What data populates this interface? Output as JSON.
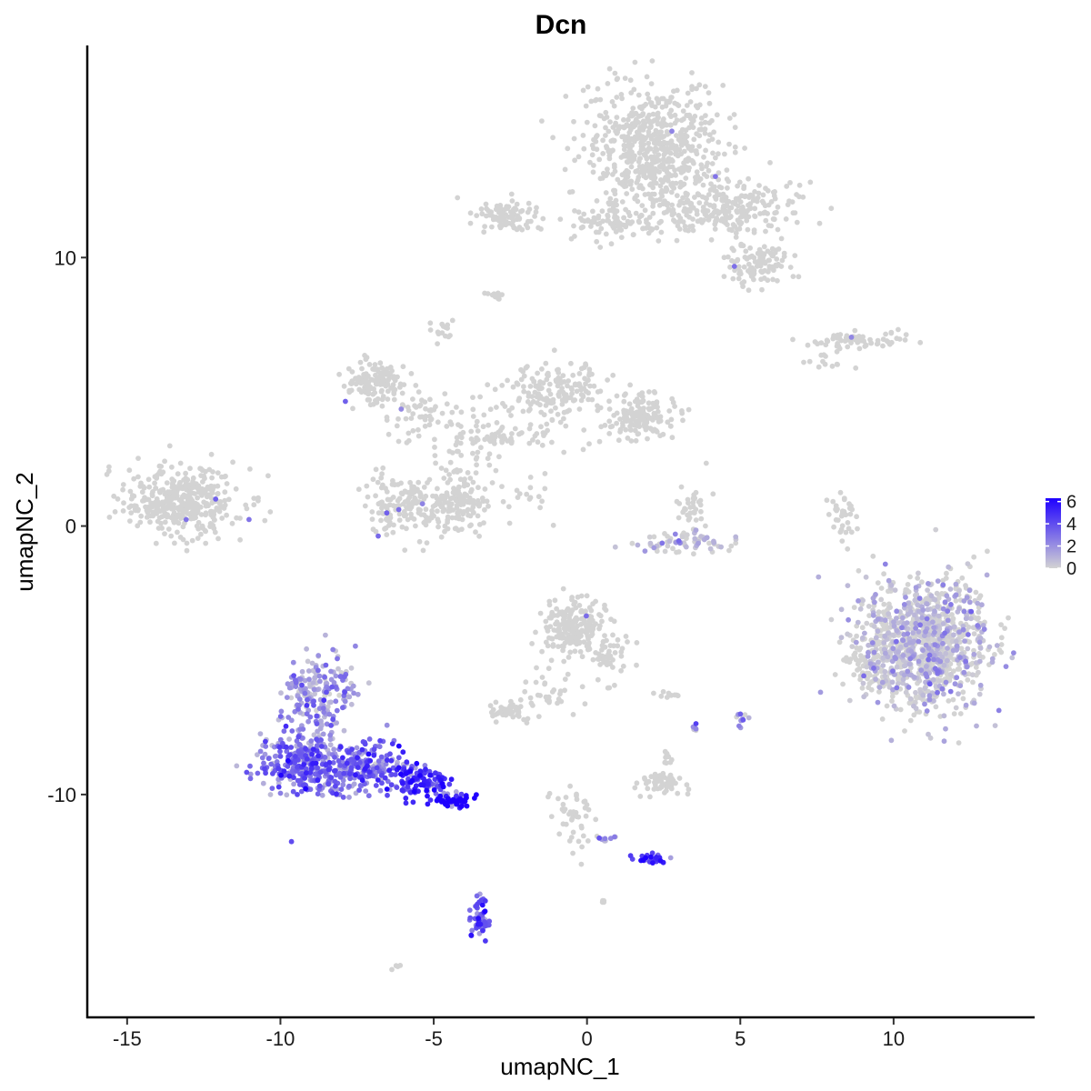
{
  "chart_data": {
    "type": "scatter",
    "title": "Dcn",
    "xlabel": "umapNC_1",
    "ylabel": "umapNC_2",
    "xlim": [
      -16.3,
      14.6
    ],
    "ylim": [
      -18.3,
      17.9
    ],
    "x_ticks": [
      -15,
      -10,
      -5,
      0,
      5,
      10
    ],
    "x_tick_labels": [
      "-15",
      "-10",
      "-5",
      "0",
      "5",
      "10"
    ],
    "y_ticks": [
      -10,
      0,
      10
    ],
    "y_tick_labels": [
      "-10",
      "0",
      "10"
    ],
    "grid": false,
    "legend": {
      "position": "right",
      "type": "colorbar",
      "ticks": [
        0,
        2,
        4,
        6
      ],
      "tick_labels": [
        "0",
        "2",
        "4",
        "6"
      ],
      "range": [
        0,
        6.3
      ]
    },
    "colors": {
      "low": "#d3d3d3",
      "high": "#1e00ff"
    },
    "clusters": [
      {
        "cx": -13.2,
        "cy": 0.9,
        "sx": 1.1,
        "sy": 0.75,
        "n": 380,
        "expr": 0
      },
      {
        "cx": 2.2,
        "cy": 14.0,
        "sx": 1.3,
        "sy": 1.4,
        "n": 650,
        "expr": 0
      },
      {
        "cx": 4.5,
        "cy": 11.8,
        "sx": 1.3,
        "sy": 0.6,
        "n": 260,
        "expr": 0
      },
      {
        "cx": 5.5,
        "cy": 9.8,
        "sx": 0.6,
        "sy": 0.45,
        "n": 110,
        "expr": 0
      },
      {
        "cx": -2.5,
        "cy": 11.6,
        "sx": 0.6,
        "sy": 0.35,
        "n": 90,
        "expr": 0
      },
      {
        "cx": 0.9,
        "cy": 11.3,
        "sx": 0.9,
        "sy": 0.4,
        "n": 80,
        "expr": 0
      },
      {
        "cx": -3.0,
        "cy": 8.6,
        "sx": 0.15,
        "sy": 0.1,
        "n": 12,
        "expr": 0
      },
      {
        "cx": -4.7,
        "cy": 7.3,
        "sx": 0.2,
        "sy": 0.2,
        "n": 15,
        "expr": 0
      },
      {
        "cx": 8.8,
        "cy": 6.9,
        "sx": 1.0,
        "sy": 0.18,
        "n": 70,
        "expr": 0
      },
      {
        "cx": 7.9,
        "cy": 6.1,
        "sx": 0.35,
        "sy": 0.2,
        "n": 12,
        "expr": 0
      },
      {
        "cx": -6.9,
        "cy": 5.4,
        "sx": 0.55,
        "sy": 0.45,
        "n": 140,
        "expr": 0
      },
      {
        "cx": -5.2,
        "cy": 4.2,
        "sx": 0.9,
        "sy": 0.5,
        "n": 60,
        "expr": 0
      },
      {
        "cx": -4.2,
        "cy": 2.0,
        "sx": 0.6,
        "sy": 1.0,
        "n": 50,
        "expr": 0
      },
      {
        "cx": -6.0,
        "cy": 0.8,
        "sx": 0.7,
        "sy": 0.65,
        "n": 150,
        "expr": 0
      },
      {
        "cx": -4.2,
        "cy": 0.8,
        "sx": 0.55,
        "sy": 0.6,
        "n": 130,
        "expr": 0
      },
      {
        "cx": -1.4,
        "cy": 5.0,
        "sx": 0.8,
        "sy": 0.6,
        "n": 100,
        "expr": 0
      },
      {
        "cx": -0.3,
        "cy": 5.2,
        "sx": 0.5,
        "sy": 0.7,
        "n": 60,
        "expr": 0
      },
      {
        "cx": 1.8,
        "cy": 4.1,
        "sx": 0.6,
        "sy": 0.45,
        "n": 150,
        "expr": 0
      },
      {
        "cx": -2.6,
        "cy": 3.4,
        "sx": 1.3,
        "sy": 0.4,
        "n": 70,
        "expr": 0
      },
      {
        "cx": -2.0,
        "cy": 1.0,
        "sx": 0.5,
        "sy": 0.45,
        "n": 18,
        "expr": 0
      },
      {
        "cx": 3.4,
        "cy": 0.7,
        "sx": 0.3,
        "sy": 0.45,
        "n": 35,
        "expr": 0
      },
      {
        "cx": 3.2,
        "cy": -0.6,
        "sx": 1.0,
        "sy": 0.3,
        "n": 70,
        "expr": 0.02
      },
      {
        "cx": 8.3,
        "cy": 0.3,
        "sx": 0.25,
        "sy": 0.65,
        "n": 35,
        "expr": 0
      },
      {
        "cx": 11.0,
        "cy": -4.4,
        "sx": 1.2,
        "sy": 1.4,
        "n": 1100,
        "expr": 0.01
      },
      {
        "cx": 9.1,
        "cy": -5.2,
        "sx": 0.5,
        "sy": 0.6,
        "n": 60,
        "expr": 0
      },
      {
        "cx": -0.4,
        "cy": -3.8,
        "sx": 0.6,
        "sy": 0.6,
        "n": 230,
        "expr": 0
      },
      {
        "cx": 0.8,
        "cy": -4.8,
        "sx": 0.35,
        "sy": 0.6,
        "n": 40,
        "expr": 0
      },
      {
        "cx": -1.3,
        "cy": -6.2,
        "sx": 0.6,
        "sy": 0.5,
        "n": 30,
        "expr": 0
      },
      {
        "cx": -2.6,
        "cy": -6.9,
        "sx": 0.35,
        "sy": 0.2,
        "n": 55,
        "expr": 0
      },
      {
        "cx": 2.5,
        "cy": -9.5,
        "sx": 0.4,
        "sy": 0.25,
        "n": 60,
        "expr": 0
      },
      {
        "cx": 2.6,
        "cy": -8.6,
        "sx": 0.15,
        "sy": 0.2,
        "n": 10,
        "expr": 0
      },
      {
        "cx": 2.8,
        "cy": -6.3,
        "sx": 0.3,
        "sy": 0.08,
        "n": 10,
        "expr": 0
      },
      {
        "cx": 5.0,
        "cy": -7.2,
        "sx": 0.12,
        "sy": 0.2,
        "n": 10,
        "expr": 0.3
      },
      {
        "cx": 3.5,
        "cy": -7.5,
        "sx": 0.08,
        "sy": 0.15,
        "n": 5,
        "expr": 0.3
      },
      {
        "cx": -0.5,
        "cy": -11.0,
        "sx": 0.4,
        "sy": 0.9,
        "n": 45,
        "expr": 0
      },
      {
        "cx": 0.6,
        "cy": -11.7,
        "sx": 0.3,
        "sy": 0.08,
        "n": 8,
        "expr": 0.3
      },
      {
        "cx": 0.5,
        "cy": -14.0,
        "sx": 0.1,
        "sy": 0.08,
        "n": 4,
        "expr": 0
      },
      {
        "cx": -6.2,
        "cy": -16.4,
        "sx": 0.1,
        "sy": 0.08,
        "n": 4,
        "expr": 0
      },
      {
        "cx": -8.7,
        "cy": -6.3,
        "sx": 0.7,
        "sy": 0.9,
        "n": 200,
        "expr": 0.3
      },
      {
        "cx": -9.2,
        "cy": -8.9,
        "sx": 0.9,
        "sy": 0.7,
        "n": 320,
        "expr": 0.5
      },
      {
        "cx": -7.3,
        "cy": -8.9,
        "sx": 0.9,
        "sy": 0.6,
        "n": 180,
        "expr": 0.55
      },
      {
        "cx": -5.5,
        "cy": -9.5,
        "sx": 0.6,
        "sy": 0.4,
        "n": 110,
        "expr": 0.75
      },
      {
        "cx": -4.3,
        "cy": -10.2,
        "sx": 0.35,
        "sy": 0.18,
        "n": 55,
        "expr": 0.92
      },
      {
        "cx": -3.5,
        "cy": -14.6,
        "sx": 0.2,
        "sy": 0.45,
        "n": 60,
        "expr": 0.6
      },
      {
        "cx": 2.1,
        "cy": -12.4,
        "sx": 0.35,
        "sy": 0.12,
        "n": 30,
        "expr": 0.7
      }
    ]
  }
}
